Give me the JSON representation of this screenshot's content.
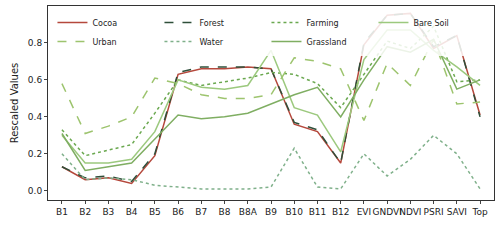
{
  "chart_data": {
    "type": "line",
    "y_label": "Rescaled Values",
    "categories": [
      "B1",
      "B2",
      "B3",
      "B4",
      "B5",
      "B6",
      "B7",
      "B8",
      "B8A",
      "B9",
      "B10",
      "B11",
      "B12",
      "EVI",
      "GNDVI",
      "NDVI",
      "PSRI",
      "SAVI",
      "Top"
    ],
    "series": [
      {
        "name": "Cocoa",
        "color": "#b5483c",
        "line_style": "solid",
        "values": [
          0.13,
          0.06,
          0.07,
          0.04,
          0.19,
          0.63,
          0.66,
          0.66,
          0.67,
          0.66,
          0.36,
          0.32,
          0.15,
          0.79,
          0.95,
          0.96,
          0.77,
          0.84,
          0.41
        ]
      },
      {
        "name": "Forest",
        "color": "#2f4f3a",
        "line_style": "dashed",
        "values": [
          0.13,
          0.07,
          0.08,
          0.05,
          0.2,
          0.64,
          0.67,
          0.67,
          0.67,
          0.66,
          0.37,
          0.33,
          0.15,
          0.8,
          0.95,
          0.96,
          0.78,
          0.84,
          0.4
        ]
      },
      {
        "name": "Farming",
        "color": "#6aa84f",
        "line_style": "dotted",
        "values": [
          0.33,
          0.19,
          0.22,
          0.25,
          0.42,
          0.6,
          0.57,
          0.59,
          0.61,
          0.64,
          0.63,
          0.58,
          0.45,
          0.63,
          0.81,
          0.77,
          0.89,
          0.59,
          0.6
        ]
      },
      {
        "name": "Bare Soil",
        "color": "#9cc97e",
        "line_style": "solid",
        "values": [
          0.3,
          0.15,
          0.15,
          0.17,
          0.32,
          0.6,
          0.56,
          0.55,
          0.57,
          0.76,
          0.45,
          0.41,
          0.21,
          0.71,
          0.87,
          0.87,
          0.76,
          0.67,
          0.57
        ]
      },
      {
        "name": "Urban",
        "color": "#9dc46e",
        "line_style": "dashed",
        "values": [
          0.58,
          0.31,
          0.35,
          0.4,
          0.61,
          0.58,
          0.52,
          0.5,
          0.5,
          0.52,
          0.72,
          0.7,
          0.66,
          0.38,
          0.69,
          0.57,
          0.82,
          0.47,
          0.48
        ]
      },
      {
        "name": "Water",
        "color": "#7fb08a",
        "line_style": "dotted",
        "values": [
          0.2,
          0.06,
          0.07,
          0.06,
          0.03,
          0.02,
          0.01,
          0.01,
          0.01,
          0.02,
          0.23,
          0.02,
          0.01,
          0.2,
          0.08,
          0.17,
          0.3,
          0.2,
          0.01
        ]
      },
      {
        "name": "Grassland",
        "color": "#7fae62",
        "line_style": "solid",
        "values": [
          0.31,
          0.11,
          0.13,
          0.15,
          0.28,
          0.41,
          0.39,
          0.4,
          0.42,
          0.47,
          0.52,
          0.56,
          0.4,
          0.6,
          0.78,
          0.75,
          0.82,
          0.55,
          0.6
        ]
      }
    ],
    "ylim": [
      -0.05,
      1.0
    ],
    "yticks": [
      {
        "value": 0,
        "label": "0.0"
      },
      0.2,
      0.4,
      0.6,
      0.8
    ],
    "grid": false,
    "legend": "upper left"
  }
}
